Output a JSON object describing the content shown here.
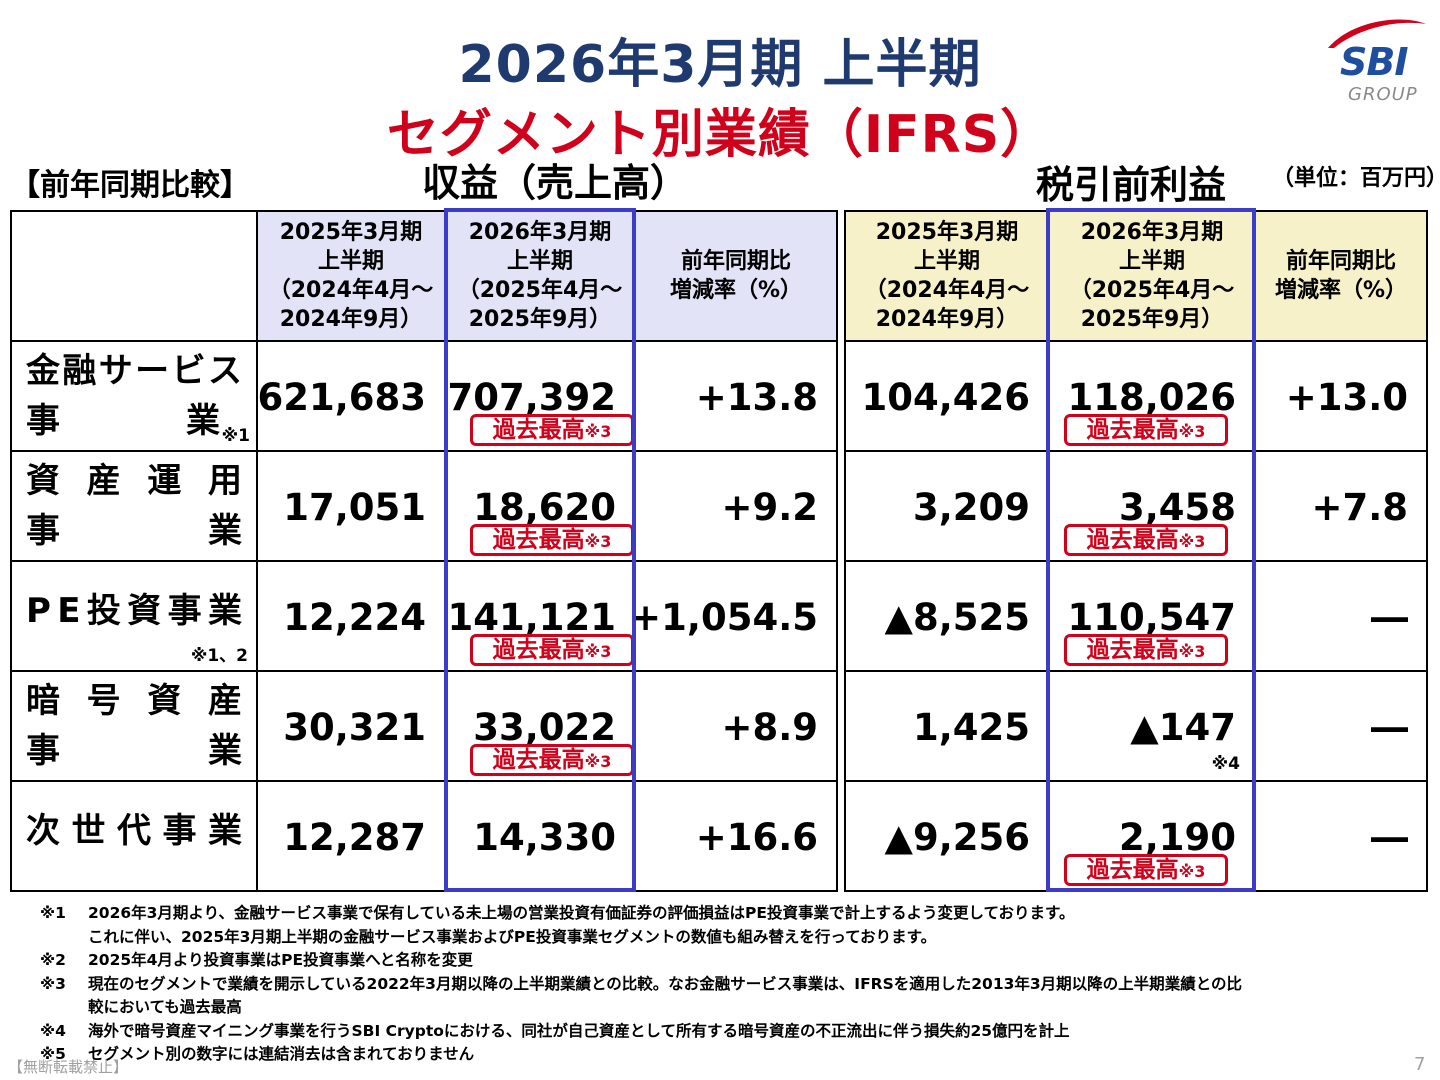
{
  "title": {
    "line1": "2026年3月期 上半期",
    "line2": "セグメント別業績（IFRS）"
  },
  "logo": {
    "text": "SBI",
    "sub": "GROUP",
    "icon": "sbi-swoosh-logo",
    "color": "#1f4e9e",
    "accent": "#d0021b"
  },
  "labels": {
    "compare": "【前年同期比較】",
    "revenue": "収益（売上高）",
    "pbt": "税引前利益",
    "unit": "（単位：百万円）"
  },
  "headers": {
    "prev_line1": "2025年3月期",
    "prev_line2": "上半期",
    "prev_line3": "（2024年4月～",
    "prev_line4": "2024年9月）",
    "curr_line1": "2026年3月期",
    "curr_line2": "上半期",
    "curr_line3": "（2025年4月～",
    "curr_line4": "2025年9月）",
    "yoy_line1": "前年同期比",
    "yoy_line2": "増減率（%）"
  },
  "badge": {
    "text": "過去最高",
    "note": "※3"
  },
  "rows": [
    {
      "name_line1": [
        "金",
        "融",
        "サ",
        "ー",
        "ビ",
        "ス"
      ],
      "name_line2": [
        "事",
        "業"
      ],
      "name_note": "※1",
      "rev_prev": "621,683",
      "rev_curr": "707,392",
      "rev_yoy": "+13.8",
      "pbt_prev": "104,426",
      "pbt_curr": "118,026",
      "pbt_yoy": "+13.0"
    },
    {
      "name_line1": [
        "資",
        "産",
        "運",
        "用"
      ],
      "name_line2": [
        "事",
        "業"
      ],
      "rev_prev": "17,051",
      "rev_curr": "18,620",
      "rev_yoy": "+9.2",
      "pbt_prev": "3,209",
      "pbt_curr": "3,458",
      "pbt_yoy": "+7.8"
    },
    {
      "name_line1": [
        "P",
        "E",
        "投",
        "資",
        "事",
        "業"
      ],
      "name_note": "※1、2",
      "rev_prev": "12,224",
      "rev_curr": "141,121",
      "rev_yoy": "+1,054.5",
      "pbt_prev": "▲8,525",
      "pbt_curr": "110,547",
      "pbt_yoy": "―"
    },
    {
      "name_line1": [
        "暗",
        "号",
        "資",
        "産"
      ],
      "name_line2": [
        "事",
        "業"
      ],
      "rev_prev": "30,321",
      "rev_curr": "33,022",
      "rev_yoy": "+8.9",
      "pbt_prev": "1,425",
      "pbt_curr": "▲147",
      "pbt_curr_note": "※4",
      "pbt_yoy": "―"
    },
    {
      "name_line1": [
        "次",
        "世",
        "代",
        "事",
        "業"
      ],
      "rev_prev": "12,287",
      "rev_curr": "14,330",
      "rev_yoy": "+16.6",
      "pbt_prev": "▲9,256",
      "pbt_curr": "2,190",
      "pbt_yoy": "―"
    }
  ],
  "footnotes": {
    "n1_mark": "※1",
    "n1_text": "2026年3月期より、金融サービス事業で保有している未上場の営業投資有価証券の評価損益はPE投資事業で計上するよう変更しております。",
    "n1_cont": "これに伴い、2025年3月期上半期の金融サービス事業およびPE投資事業セグメントの数値も組み替えを行っております。",
    "n2_mark": "※2",
    "n2_text": "2025年4月より投資事業はPE投資事業へと名称を変更",
    "n3_mark": "※3",
    "n3_text": "現在のセグメントで業績を開示している2022年3月期以降の上半期業績との比較。なお金融サービス事業は、IFRSを適用した2013年3月期以降の上半期業績との比",
    "n3_cont": "較においても過去最高",
    "n4_mark": "※4",
    "n4_text": "海外で暗号資産マイニング事業を行うSBI Cryptoにおける、同社が自己資産として所有する暗号資産の不正流出に伴う損失約25億円を計上",
    "n5_mark": "※5",
    "n5_text": "セグメント別の数字には連結消去は含まれておりません"
  },
  "footer": {
    "copyright": "【無断転載禁止】",
    "page": "7"
  },
  "colors": {
    "title_blue": "#1f3a6e",
    "accent_red": "#d0021b",
    "highlight_border": "#3c3cc8",
    "header_blue": "#e3e3f7",
    "header_yellow": "#f7f1c9"
  }
}
